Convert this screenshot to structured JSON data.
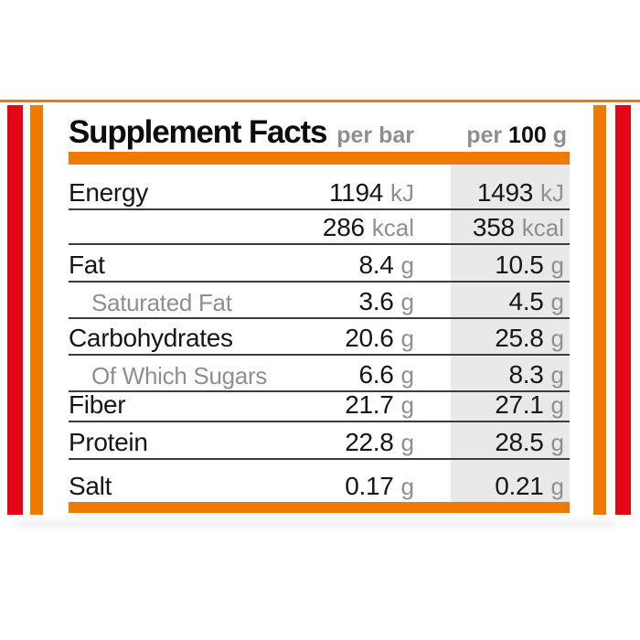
{
  "decor": {
    "accent_orange": "#ee7b00",
    "accent_red": "#e30613",
    "highlight_column_bg": "#e9e9e9"
  },
  "header": {
    "title": "Supplement Facts",
    "col_per_bar": "per bar",
    "col_per_100g_prefix": "per",
    "col_per_100g_amount": "100",
    "col_per_100g_unit": "g"
  },
  "table": {
    "rows": [
      {
        "label": "Energy",
        "per_bar": {
          "value": "1194",
          "unit": "kJ"
        },
        "per_100g": {
          "value": "1493",
          "unit": "kJ"
        }
      },
      {
        "label": "",
        "per_bar": {
          "value": "286",
          "unit": "kcal"
        },
        "per_100g": {
          "value": "358",
          "unit": "kcal"
        }
      },
      {
        "label": "Fat",
        "per_bar": {
          "value": "8.4",
          "unit": "g"
        },
        "per_100g": {
          "value": "10.5",
          "unit": "g"
        }
      },
      {
        "label": "Saturated Fat",
        "per_bar": {
          "value": "3.6",
          "unit": "g"
        },
        "per_100g": {
          "value": "4.5",
          "unit": "g"
        }
      },
      {
        "label": "Carbohydrates",
        "per_bar": {
          "value": "20.6",
          "unit": "g"
        },
        "per_100g": {
          "value": "25.8",
          "unit": "g"
        }
      },
      {
        "label": "Of Which Sugars",
        "per_bar": {
          "value": "6.6",
          "unit": "g"
        },
        "per_100g": {
          "value": "8.3",
          "unit": "g"
        }
      },
      {
        "label": "Fiber",
        "per_bar": {
          "value": "21.7",
          "unit": "g"
        },
        "per_100g": {
          "value": "27.1",
          "unit": "g"
        }
      },
      {
        "label": "Protein",
        "per_bar": {
          "value": "22.8",
          "unit": "g"
        },
        "per_100g": {
          "value": "28.5",
          "unit": "g"
        }
      },
      {
        "label": "Salt",
        "per_bar": {
          "value": "0.17",
          "unit": "g"
        },
        "per_100g": {
          "value": "0.21",
          "unit": "g"
        }
      }
    ]
  }
}
